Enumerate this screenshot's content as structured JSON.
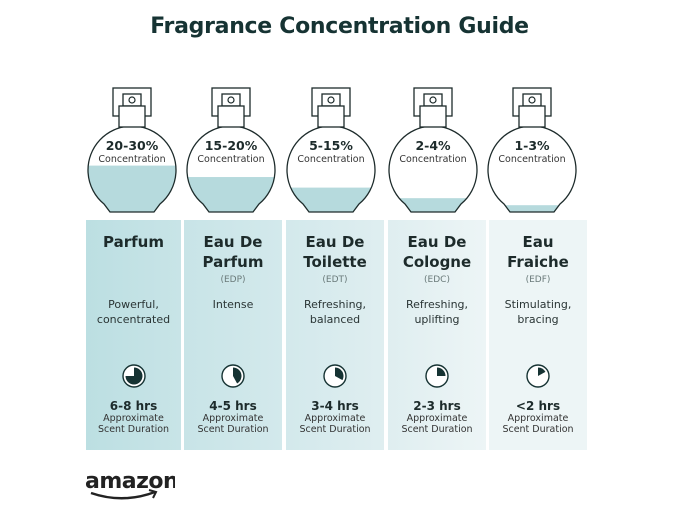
{
  "title": "Fragrance Concentration Guide",
  "colors": {
    "title": "#163333",
    "liquid": "#b6dadd",
    "column_dark": "#b9dde1",
    "column_light": "#eef6f7",
    "clock": "#163333"
  },
  "types": [
    {
      "concentration": "20-30%",
      "concentration_label": "Concentration",
      "fill_level": 0.55,
      "name_lines": [
        "Parfum"
      ],
      "abbr": "",
      "description": [
        "Powerful,",
        "concentrated"
      ],
      "duration": "6-8 hrs",
      "duration_label": [
        "Approximate",
        "Scent Duration"
      ],
      "clock_fraction": 0.75
    },
    {
      "concentration": "15-20%",
      "concentration_label": "Concentration",
      "fill_level": 0.42,
      "name_lines": [
        "Eau De",
        "Parfum"
      ],
      "abbr": "(EDP)",
      "description": [
        "Intense"
      ],
      "duration": "4-5 hrs",
      "duration_label": [
        "Approximate",
        "Scent Duration"
      ],
      "clock_fraction": 0.42
    },
    {
      "concentration": "5-15%",
      "concentration_label": "Concentration",
      "fill_level": 0.3,
      "name_lines": [
        "Eau De",
        "Toilette"
      ],
      "abbr": "(EDT)",
      "description": [
        "Refreshing,",
        "balanced"
      ],
      "duration": "3-4 hrs",
      "duration_label": [
        "Approximate",
        "Scent Duration"
      ],
      "clock_fraction": 0.33
    },
    {
      "concentration": "2-4%",
      "concentration_label": "Concentration",
      "fill_level": 0.18,
      "name_lines": [
        "Eau De",
        "Cologne"
      ],
      "abbr": "(EDC)",
      "description": [
        "Refreshing,",
        "uplifting"
      ],
      "duration": "2-3 hrs",
      "duration_label": [
        "Approximate",
        "Scent Duration"
      ],
      "clock_fraction": 0.25
    },
    {
      "concentration": "1-3%",
      "concentration_label": "Concentration",
      "fill_level": 0.1,
      "name_lines": [
        "Eau",
        "Fraiche"
      ],
      "abbr": "(EDF)",
      "description": [
        "Stimulating,",
        "bracing"
      ],
      "duration": "<2 hrs",
      "duration_label": [
        "Approximate",
        "Scent Duration"
      ],
      "clock_fraction": 0.17
    }
  ],
  "logo": "amazon"
}
